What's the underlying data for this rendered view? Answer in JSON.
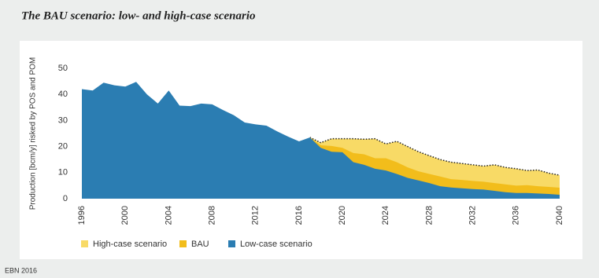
{
  "chart_data": {
    "type": "area",
    "title": "The BAU scenario: low- and high-case scenario",
    "y_label": "Production [bcm/y] risked by POS and POM",
    "source": "EBN 2016",
    "x": [
      1996,
      1997,
      1998,
      1999,
      2000,
      2001,
      2002,
      2003,
      2004,
      2005,
      2006,
      2007,
      2008,
      2009,
      2010,
      2011,
      2012,
      2013,
      2014,
      2015,
      2016,
      2017,
      2018,
      2019,
      2020,
      2021,
      2022,
      2023,
      2024,
      2025,
      2026,
      2027,
      2028,
      2029,
      2030,
      2031,
      2032,
      2033,
      2034,
      2035,
      2036,
      2037,
      2038,
      2039,
      2040
    ],
    "xlim": [
      1996,
      2040
    ],
    "xticks": [
      1996,
      2000,
      2004,
      2008,
      2012,
      2016,
      2020,
      2024,
      2028,
      2032,
      2036,
      2040
    ],
    "ylim": [
      0,
      50
    ],
    "yticks": [
      0,
      10,
      20,
      30,
      40,
      50
    ],
    "series": [
      {
        "name": "High-case scenario",
        "color": "#f8da66",
        "line_style": "dotted",
        "values": [
          null,
          null,
          null,
          null,
          null,
          null,
          null,
          null,
          null,
          null,
          null,
          null,
          null,
          null,
          null,
          null,
          null,
          null,
          null,
          null,
          null,
          23.5,
          21.5,
          23,
          23,
          23,
          22.8,
          23,
          21,
          22,
          20,
          18,
          16.5,
          15,
          14,
          13.5,
          13,
          12.5,
          13,
          12,
          11.5,
          10.8,
          11,
          9.8,
          9
        ]
      },
      {
        "name": "BAU",
        "color": "#f2bd1b",
        "values": [
          null,
          null,
          null,
          null,
          null,
          null,
          null,
          null,
          null,
          null,
          null,
          null,
          null,
          null,
          null,
          null,
          null,
          null,
          null,
          null,
          null,
          23.5,
          20.5,
          20.2,
          19.5,
          17.5,
          17,
          15.5,
          15.5,
          14,
          12,
          10.5,
          9.5,
          8.5,
          7.5,
          7.2,
          6.8,
          6.5,
          6,
          5.5,
          5,
          5.2,
          4.8,
          4.5,
          4.2
        ]
      },
      {
        "name": "Low-case scenario",
        "color": "#2b7db2",
        "values": [
          42,
          41.5,
          44.5,
          43.5,
          43,
          44.8,
          40,
          36.5,
          41.5,
          35.7,
          35.5,
          36.5,
          36.2,
          34,
          32,
          29.2,
          28.5,
          28,
          25.8,
          23.8,
          22,
          23.5,
          19.5,
          18,
          17.8,
          14,
          13,
          11.5,
          10.8,
          9.5,
          8,
          7,
          6,
          4.8,
          4.3,
          4,
          3.7,
          3.5,
          3,
          2.5,
          2.2,
          2.2,
          2,
          1.8,
          1.5
        ]
      }
    ]
  }
}
